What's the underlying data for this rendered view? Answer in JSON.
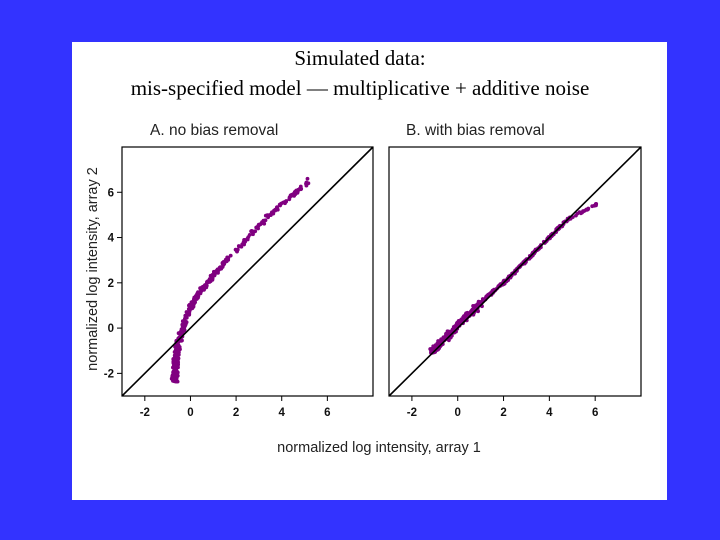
{
  "slide": {
    "title_line1": "Simulated data:",
    "title_line2": "mis-specified model — multiplicative + additive noise"
  },
  "chart_data": [
    {
      "type": "scatter",
      "title": "A. no bias removal",
      "xlabel": "normalized log intensity, array 1",
      "ylabel": "normalized log intensity, array 2",
      "xlim": [
        -3,
        8
      ],
      "ylim": [
        -3,
        8
      ],
      "x_ticks": [
        -2,
        0,
        2,
        4,
        6
      ],
      "y_ticks": [
        -2,
        0,
        2,
        4,
        6
      ],
      "reference_line": "y = x",
      "point_color": "#800080",
      "curve": [
        [
          -0.7,
          -2.2
        ],
        [
          -0.65,
          -1.6
        ],
        [
          -0.6,
          -1.1
        ],
        [
          -0.5,
          -0.6
        ],
        [
          -0.35,
          -0.1
        ],
        [
          -0.2,
          0.4
        ],
        [
          0,
          0.9
        ],
        [
          0.2,
          1.3
        ],
        [
          0.5,
          1.7
        ],
        [
          0.9,
          2.2
        ],
        [
          1.4,
          2.8
        ],
        [
          2.0,
          3.4
        ],
        [
          2.8,
          4.3
        ],
        [
          3.6,
          5.1
        ],
        [
          4.5,
          5.9
        ],
        [
          5.2,
          6.5
        ]
      ]
    },
    {
      "type": "scatter",
      "title": "B. with bias removal",
      "xlabel": "normalized log intensity, array 1",
      "ylabel": "",
      "xlim": [
        -3,
        8
      ],
      "ylim": [
        -3,
        8
      ],
      "x_ticks": [
        -2,
        0,
        2,
        4,
        6
      ],
      "y_ticks": [],
      "reference_line": "y = x",
      "point_color": "#800080",
      "curve": [
        [
          -1.1,
          -1.0
        ],
        [
          -0.5,
          -0.4
        ],
        [
          0,
          0.1
        ],
        [
          0.5,
          0.6
        ],
        [
          1.0,
          1.1
        ],
        [
          1.5,
          1.6
        ],
        [
          2.0,
          2.0
        ],
        [
          2.5,
          2.5
        ],
        [
          3.0,
          3.0
        ],
        [
          3.5,
          3.5
        ],
        [
          4.0,
          4.0
        ],
        [
          4.8,
          4.8
        ],
        [
          6.1,
          5.5
        ]
      ]
    }
  ]
}
